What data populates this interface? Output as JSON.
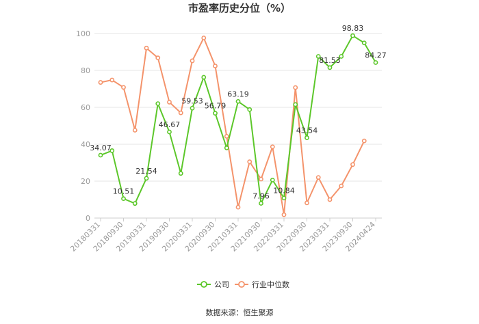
{
  "source_text": "数据来源：恒生聚源",
  "chart_data": {
    "type": "line",
    "title": "市盈率历史分位（%）",
    "xlabel": "",
    "ylabel": "",
    "ylim": [
      0,
      100
    ],
    "yticks": [
      0,
      20,
      40,
      60,
      80,
      100
    ],
    "tick_labels": [
      "20180331",
      "20180930",
      "20190331",
      "20190930",
      "20200331",
      "20200930",
      "20210331",
      "20210930",
      "20220331",
      "20220930",
      "20230331",
      "20230930",
      "20240424"
    ],
    "grid": true,
    "legend_position": "bottom",
    "series": [
      {
        "name": "公司",
        "color": "#5cc72a",
        "values": [
          34.07,
          36.5,
          10.51,
          7.9,
          21.54,
          62.0,
          46.67,
          24.2,
          59.53,
          76.3,
          56.79,
          38.0,
          63.19,
          58.8,
          7.96,
          20.6,
          10.84,
          61.5,
          43.54,
          87.6,
          81.53,
          87.6,
          98.83,
          94.9,
          84.27
        ]
      },
      {
        "name": "行业中位数",
        "color": "#f4936b",
        "values": [
          73.5,
          74.8,
          70.8,
          47.6,
          92.1,
          86.8,
          62.8,
          57.0,
          85.2,
          97.6,
          82.4,
          44.3,
          5.9,
          30.5,
          21.1,
          38.6,
          1.8,
          70.7,
          8.2,
          22.0,
          10.0,
          17.4,
          29.0,
          41.8,
          null
        ]
      }
    ],
    "data_labels": [
      {
        "series": 0,
        "index": 0,
        "text": "34.07"
      },
      {
        "series": 0,
        "index": 2,
        "text": "10.51"
      },
      {
        "series": 0,
        "index": 4,
        "text": "21.54"
      },
      {
        "series": 0,
        "index": 6,
        "text": "46.67"
      },
      {
        "series": 0,
        "index": 8,
        "text": "59.53"
      },
      {
        "series": 0,
        "index": 10,
        "text": "56.79"
      },
      {
        "series": 0,
        "index": 12,
        "text": "63.19"
      },
      {
        "series": 0,
        "index": 14,
        "text": "7.96"
      },
      {
        "series": 0,
        "index": 16,
        "text": "10.84"
      },
      {
        "series": 0,
        "index": 18,
        "text": "43.54"
      },
      {
        "series": 0,
        "index": 20,
        "text": "81.53"
      },
      {
        "series": 0,
        "index": 22,
        "text": "98.83"
      },
      {
        "series": 0,
        "index": 24,
        "text": "84.27"
      }
    ]
  }
}
